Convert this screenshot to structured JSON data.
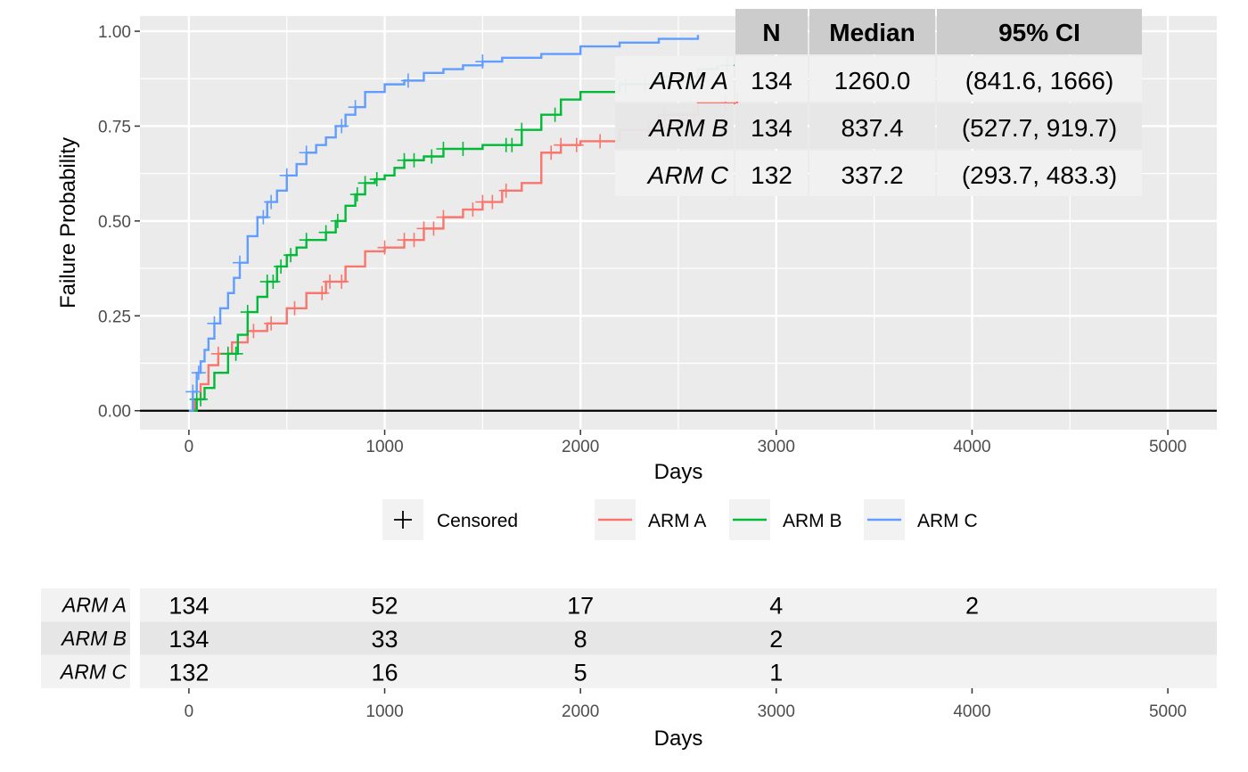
{
  "chart_data": [
    {
      "type": "line",
      "subtype": "cumulative-incidence-step",
      "xlabel": "Days",
      "ylabel": "Failure Probability",
      "xlim": [
        -250,
        5250
      ],
      "ylim": [
        -0.05,
        1.04
      ],
      "xticks": [
        "0",
        "1000",
        "2000",
        "3000",
        "4000",
        "5000"
      ],
      "yticks": [
        "0.00",
        "0.25",
        "0.50",
        "0.75",
        "1.00"
      ],
      "grid": true,
      "legend_position": "bottom",
      "legend": {
        "censored_label": "Censored",
        "items": [
          "ARM A",
          "ARM B",
          "ARM C"
        ]
      },
      "series": [
        {
          "name": "ARM A",
          "color": "#F8766D",
          "x": [
            0,
            30,
            60,
            100,
            150,
            220,
            300,
            400,
            500,
            600,
            700,
            800,
            900,
            1000,
            1100,
            1200,
            1300,
            1400,
            1500,
            1600,
            1700,
            1800,
            1900,
            2000,
            2200,
            2400,
            2600,
            2800
          ],
          "y": [
            0,
            0.03,
            0.07,
            0.12,
            0.15,
            0.18,
            0.21,
            0.23,
            0.27,
            0.31,
            0.34,
            0.38,
            0.42,
            0.43,
            0.45,
            0.48,
            0.51,
            0.53,
            0.55,
            0.58,
            0.6,
            0.68,
            0.7,
            0.71,
            0.74,
            0.78,
            0.81,
            0.84
          ],
          "censored_x": [
            150,
            330,
            420,
            540,
            680,
            720,
            780,
            1000,
            1100,
            1150,
            1200,
            1250,
            1300,
            1450,
            1500,
            1550,
            1620,
            1850,
            1900,
            1980,
            2100,
            2350,
            2430,
            2580,
            2740
          ]
        },
        {
          "name": "ARM B",
          "color": "#00BA38",
          "x": [
            0,
            40,
            80,
            130,
            200,
            250,
            300,
            350,
            400,
            450,
            500,
            550,
            600,
            700,
            750,
            800,
            850,
            900,
            950,
            1000,
            1050,
            1100,
            1200,
            1300,
            1500,
            1700,
            1800,
            1900,
            2000,
            2200,
            2400,
            2600,
            2700
          ],
          "y": [
            0,
            0.03,
            0.06,
            0.1,
            0.15,
            0.2,
            0.26,
            0.3,
            0.34,
            0.38,
            0.41,
            0.43,
            0.45,
            0.47,
            0.5,
            0.54,
            0.57,
            0.6,
            0.61,
            0.62,
            0.64,
            0.66,
            0.67,
            0.69,
            0.7,
            0.74,
            0.78,
            0.82,
            0.84,
            0.86,
            0.88,
            0.9,
            0.91
          ],
          "censored_x": [
            40,
            60,
            200,
            240,
            300,
            400,
            430,
            470,
            520,
            600,
            700,
            760,
            860,
            900,
            960,
            1100,
            1150,
            1240,
            1300,
            1400,
            1620,
            1650,
            1700,
            1870,
            2230,
            2330,
            2750
          ]
        },
        {
          "name": "ARM C",
          "color": "#619CFF",
          "x": [
            0,
            20,
            40,
            60,
            80,
            100,
            130,
            160,
            200,
            230,
            260,
            300,
            350,
            400,
            450,
            500,
            550,
            600,
            650,
            700,
            750,
            800,
            850,
            900,
            1000,
            1100,
            1200,
            1300,
            1400,
            1500,
            1600,
            1800,
            2000,
            2200,
            2400,
            2600
          ],
          "y": [
            0,
            0.05,
            0.1,
            0.13,
            0.16,
            0.19,
            0.23,
            0.27,
            0.31,
            0.35,
            0.39,
            0.46,
            0.51,
            0.55,
            0.58,
            0.62,
            0.65,
            0.68,
            0.7,
            0.72,
            0.75,
            0.78,
            0.8,
            0.84,
            0.86,
            0.87,
            0.89,
            0.9,
            0.91,
            0.92,
            0.93,
            0.94,
            0.96,
            0.97,
            0.98,
            0.99
          ],
          "censored_x": [
            20,
            50,
            130,
            260,
            380,
            420,
            500,
            600,
            780,
            850,
            1120,
            1500
          ]
        }
      ],
      "summary_table": {
        "headers": [
          "N",
          "Median",
          "95% CI"
        ],
        "rows": [
          {
            "label": "ARM A",
            "n": "134",
            "median": "1260.0",
            "ci": "(841.6, 1666)"
          },
          {
            "label": "ARM B",
            "n": "134",
            "median": "837.4",
            "ci": "(527.7, 919.7)"
          },
          {
            "label": "ARM C",
            "n": "132",
            "median": "337.2",
            "ci": "(293.7, 483.3)"
          }
        ]
      }
    },
    {
      "type": "table",
      "subtype": "risk-table",
      "xlabel": "Days",
      "xlim": [
        -250,
        5250
      ],
      "xticks": [
        "0",
        "1000",
        "2000",
        "3000",
        "4000",
        "5000"
      ],
      "rows": [
        {
          "label": "ARM A",
          "times": [
            0,
            1000,
            2000,
            3000,
            4000
          ],
          "values": [
            "134",
            "52",
            "17",
            "4",
            "2"
          ]
        },
        {
          "label": "ARM B",
          "times": [
            0,
            1000,
            2000,
            3000
          ],
          "values": [
            "134",
            "33",
            "8",
            "2"
          ]
        },
        {
          "label": "ARM C",
          "times": [
            0,
            1000,
            2000,
            3000
          ],
          "values": [
            "132",
            "16",
            "5",
            "1"
          ]
        }
      ]
    }
  ]
}
